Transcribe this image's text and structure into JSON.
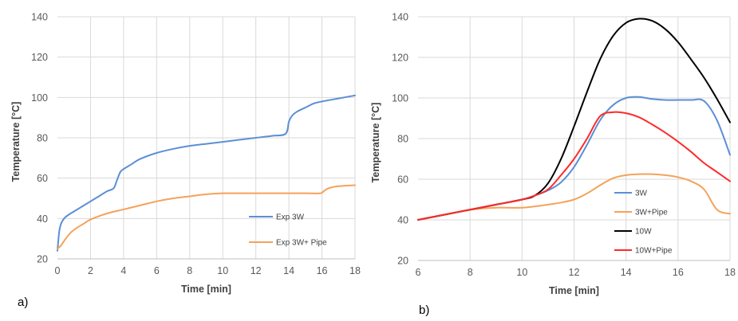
{
  "chart_data": [
    {
      "type": "line",
      "panel_label": "a)",
      "xlabel": "Time [min]",
      "ylabel": "Temperature  [°C]",
      "xlim": [
        0,
        18
      ],
      "ylim": [
        20,
        140
      ],
      "x_ticks": [
        0,
        2,
        4,
        6,
        8,
        10,
        12,
        14,
        16,
        18
      ],
      "y_ticks": [
        20,
        40,
        60,
        80,
        100,
        120,
        140
      ],
      "grid": true,
      "legend_position": "bottom-right",
      "series": [
        {
          "name": "Exp 3W",
          "color": "#5b8fd6",
          "x": [
            0,
            0.1,
            0.2,
            0.4,
            0.7,
            1,
            1.5,
            2,
            2.5,
            3,
            3.4,
            3.6,
            3.8,
            4,
            4.5,
            5,
            6,
            7,
            8,
            9,
            10,
            11,
            12,
            13,
            13.8,
            14,
            14.2,
            14.5,
            15,
            15.5,
            16,
            17,
            18
          ],
          "y": [
            24,
            33,
            37,
            40,
            42,
            43.5,
            46,
            48.5,
            51,
            53.5,
            55,
            59,
            63,
            64.5,
            67,
            69.5,
            72.5,
            74.5,
            76,
            77,
            78,
            79,
            80,
            81,
            82,
            88,
            91,
            93,
            95,
            97,
            98,
            99.5,
            101
          ]
        },
        {
          "name": "Exp 3W+ Pipe",
          "color": "#f4a25a",
          "x": [
            0,
            0.2,
            0.5,
            0.8,
            1.2,
            1.6,
            2,
            3,
            4,
            5,
            6,
            7,
            8,
            9,
            10,
            11,
            12,
            13,
            14,
            15,
            15.9,
            16.1,
            16.4,
            17,
            18
          ],
          "y": [
            25,
            26.5,
            30,
            33,
            35.5,
            37.5,
            39.5,
            42.5,
            44.5,
            46.5,
            48.5,
            50,
            51,
            52,
            52.5,
            52.5,
            52.5,
            52.5,
            52.5,
            52.5,
            52.5,
            53.5,
            55,
            56,
            56.5
          ]
        }
      ]
    },
    {
      "type": "line",
      "panel_label": "b)",
      "xlabel": "Time [min]",
      "ylabel": "Temperature  [°C]",
      "xlim": [
        6,
        18
      ],
      "ylim": [
        20,
        140
      ],
      "x_ticks": [
        6,
        8,
        10,
        12,
        14,
        16,
        18
      ],
      "y_ticks": [
        20,
        40,
        60,
        80,
        100,
        120,
        140
      ],
      "grid": true,
      "legend_position": "bottom-right",
      "series": [
        {
          "name": "3W",
          "color": "#5b8fd6",
          "x": [
            6,
            7,
            8,
            9,
            10,
            10.5,
            11,
            11.5,
            12,
            12.5,
            13,
            13.5,
            14,
            14.5,
            15,
            15.5,
            16,
            16.5,
            17,
            17.5,
            18
          ],
          "y": [
            40,
            42.5,
            45,
            47.5,
            50,
            52,
            54.5,
            58.5,
            66,
            77,
            89,
            96.5,
            100,
            100.5,
            99.5,
            99,
            99,
            99,
            98.5,
            89,
            72
          ]
        },
        {
          "name": "3W+Pipe",
          "color": "#f4a25a",
          "x": [
            6,
            7,
            8,
            9,
            10,
            11,
            11.5,
            12,
            12.5,
            13,
            13.5,
            14,
            14.5,
            15,
            15.5,
            16,
            16.5,
            17,
            17.5,
            18
          ],
          "y": [
            40,
            42.5,
            45,
            46,
            46,
            47.5,
            48.5,
            50,
            53,
            57,
            60.5,
            62,
            62.5,
            62.5,
            62,
            61,
            59,
            55,
            45,
            43
          ]
        },
        {
          "name": "10W",
          "color": "#000000",
          "x": [
            6,
            7,
            8,
            9,
            10,
            10.5,
            11,
            11.5,
            12,
            12.5,
            13,
            13.5,
            14,
            14.5,
            15,
            15.5,
            16,
            16.5,
            17,
            17.5,
            18
          ],
          "y": [
            40,
            42.5,
            45,
            47.5,
            50,
            52,
            58,
            70,
            86,
            103,
            119,
            130.5,
            137,
            139,
            138,
            134,
            127.5,
            119,
            110,
            99.5,
            88
          ]
        },
        {
          "name": "10W+Pipe",
          "color": "#ff2a2a",
          "x": [
            6,
            7,
            8,
            9,
            10,
            10.5,
            11,
            11.5,
            12,
            12.5,
            13,
            13.5,
            14,
            14.5,
            15,
            15.5,
            16,
            16.5,
            17,
            17.5,
            18
          ],
          "y": [
            40,
            42.5,
            45,
            47.5,
            50,
            52,
            55,
            62,
            70,
            80,
            91,
            93,
            92.5,
            90.5,
            87,
            83,
            78.5,
            73.5,
            68,
            63.5,
            59
          ]
        }
      ]
    }
  ]
}
